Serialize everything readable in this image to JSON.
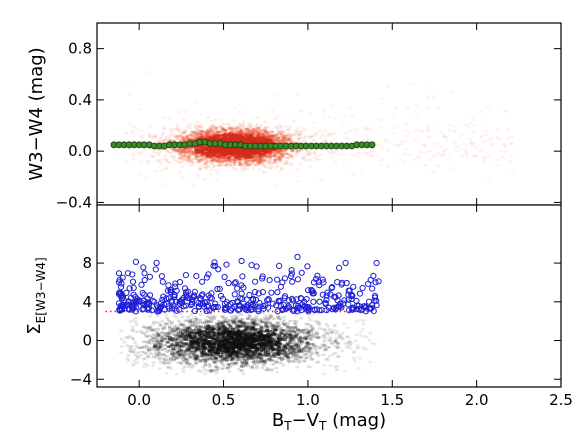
{
  "chart_data": [
    {
      "type": "scatter",
      "panel": "top",
      "xlabel": "",
      "ylabel": "W3−W4 (mag)",
      "xlim": [
        -0.25,
        2.5
      ],
      "ylim": [
        -0.42,
        1.0
      ],
      "yticks": [
        "0.8",
        "0.4",
        "0.0",
        "−0.4"
      ],
      "yticks_values": [
        0.8,
        0.4,
        0.0,
        -0.4
      ],
      "grid": false,
      "density": {
        "color_scale": "reds",
        "core": {
          "x": 0.55,
          "y": 0.05,
          "sx": 0.15,
          "sy": 0.07
        },
        "extent_x": [
          -0.1,
          2.2
        ]
      },
      "series": [
        {
          "kind": "binned-median",
          "marker_color": "#3a8a2a",
          "x": [
            -0.15,
            -0.12,
            -0.09,
            -0.06,
            -0.03,
            0.0,
            0.03,
            0.06,
            0.09,
            0.12,
            0.15,
            0.18,
            0.21,
            0.24,
            0.27,
            0.3,
            0.33,
            0.36,
            0.39,
            0.42,
            0.45,
            0.48,
            0.51,
            0.54,
            0.57,
            0.6,
            0.63,
            0.66,
            0.69,
            0.72,
            0.75,
            0.78,
            0.81,
            0.84,
            0.87,
            0.9,
            0.93,
            0.96,
            0.99,
            1.02,
            1.05,
            1.08,
            1.11,
            1.14,
            1.17,
            1.2,
            1.23,
            1.26,
            1.29,
            1.32,
            1.35,
            1.38
          ],
          "y": [
            0.05,
            0.05,
            0.05,
            0.05,
            0.05,
            0.05,
            0.05,
            0.05,
            0.04,
            0.04,
            0.04,
            0.05,
            0.05,
            0.05,
            0.05,
            0.06,
            0.06,
            0.07,
            0.07,
            0.06,
            0.06,
            0.06,
            0.05,
            0.05,
            0.05,
            0.05,
            0.04,
            0.04,
            0.04,
            0.04,
            0.04,
            0.04,
            0.04,
            0.04,
            0.04,
            0.04,
            0.04,
            0.04,
            0.04,
            0.04,
            0.04,
            0.04,
            0.04,
            0.04,
            0.04,
            0.04,
            0.04,
            0.04,
            0.05,
            0.05,
            0.05,
            0.05
          ],
          "err": 0.02
        }
      ]
    },
    {
      "type": "scatter",
      "panel": "bottom",
      "xlabel": "B_T−V_T (mag)",
      "ylabel": "Σ_E[W3−W4]",
      "xlim": [
        -0.25,
        2.5
      ],
      "ylim": [
        -4.8,
        14.0
      ],
      "xticks": [
        "0.0",
        "0.5",
        "1.0",
        "1.5",
        "2.0",
        "2.5"
      ],
      "xticks_values": [
        0.0,
        0.5,
        1.0,
        1.5,
        2.0,
        2.5
      ],
      "yticks": [
        "8",
        "4",
        "0",
        "−4"
      ],
      "yticks_values": [
        8,
        4,
        0,
        -4
      ],
      "grid": false,
      "threshold": {
        "y": 3.0,
        "color": "#e02020",
        "style": "dotted",
        "x_range": [
          -0.2,
          1.4
        ]
      },
      "density": {
        "color_scale": "greys",
        "core": {
          "x": 0.55,
          "y": 0.0,
          "sx": 0.22,
          "sy": 1.2
        },
        "extent_x": [
          -0.1,
          1.4
        ]
      },
      "series": [
        {
          "kind": "outliers",
          "marker_color": "#1f1fd6",
          "marker": "open-circle",
          "count": 420,
          "y_min": 3.0,
          "y_max": 11.5,
          "x_range": [
            -0.12,
            1.42
          ]
        }
      ]
    }
  ]
}
